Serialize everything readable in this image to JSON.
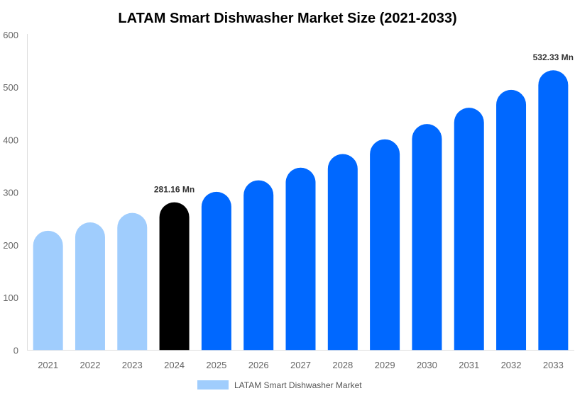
{
  "chart_data": {
    "type": "bar",
    "title": "LATAM Smart Dishwasher Market Size (2021-2033)",
    "xlabel": "",
    "ylabel": "",
    "categories": [
      "2021",
      "2022",
      "2023",
      "2024",
      "2025",
      "2026",
      "2027",
      "2028",
      "2029",
      "2030",
      "2031",
      "2032",
      "2033"
    ],
    "series": [
      {
        "name": "LATAM Smart Dishwasher Market",
        "values": [
          227,
          243,
          261,
          281.16,
          301,
          323,
          347,
          373,
          401,
          430,
          461,
          495,
          532.33
        ]
      }
    ],
    "bar_colors": [
      "#a0cdfd",
      "#a0cdfd",
      "#a0cdfd",
      "#000000",
      "#0068ff",
      "#0068ff",
      "#0068ff",
      "#0068ff",
      "#0068ff",
      "#0068ff",
      "#0068ff",
      "#0068ff",
      "#0068ff"
    ],
    "legend_color": "#a0cdfd",
    "data_labels": [
      {
        "category": "2024",
        "text": "281.16 Mn"
      },
      {
        "category": "2033",
        "text": "532.33 Mn"
      }
    ],
    "ylim": [
      0,
      600
    ],
    "yticks": [
      "0",
      "100",
      "200",
      "300",
      "400",
      "500",
      "600"
    ],
    "grid": false,
    "legend_position": "bottom"
  }
}
